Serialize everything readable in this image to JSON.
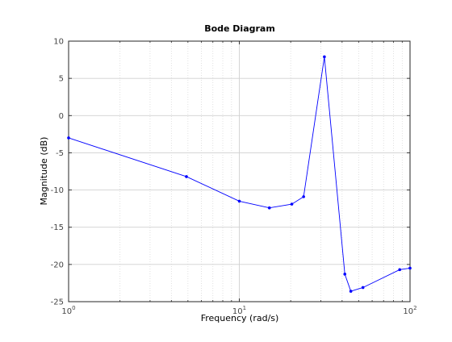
{
  "chart_data": {
    "type": "line",
    "title": "Bode Diagram",
    "xlabel": "Frequency  (rad/s)",
    "ylabel": "Magnitude (dB)",
    "xscale": "log",
    "xlim": [
      1,
      100
    ],
    "ylim": [
      -25,
      10
    ],
    "grid": true,
    "legend": "none",
    "x_ticks": [
      {
        "value": 1,
        "base": "10",
        "exp": "0"
      },
      {
        "value": 10,
        "base": "10",
        "exp": "1"
      },
      {
        "value": 100,
        "base": "10",
        "exp": "2"
      }
    ],
    "y_ticks": [
      10,
      5,
      0,
      -5,
      -10,
      -15,
      -20,
      -25
    ],
    "y_tick_labels": [
      "10",
      "5",
      "0",
      "-5",
      "-10",
      "-15",
      "-20",
      "-25"
    ],
    "series": [
      {
        "color": "#0000ff",
        "marker": "dot",
        "x": [
          1,
          4.9,
          10,
          15,
          20.3,
          23.8,
          31.5,
          41.5,
          45,
          53,
          87,
          100
        ],
        "y": [
          -3.0,
          -8.2,
          -11.5,
          -12.4,
          -11.9,
          -10.9,
          7.9,
          -21.3,
          -23.6,
          -23.1,
          -20.7,
          -20.5
        ]
      }
    ]
  }
}
